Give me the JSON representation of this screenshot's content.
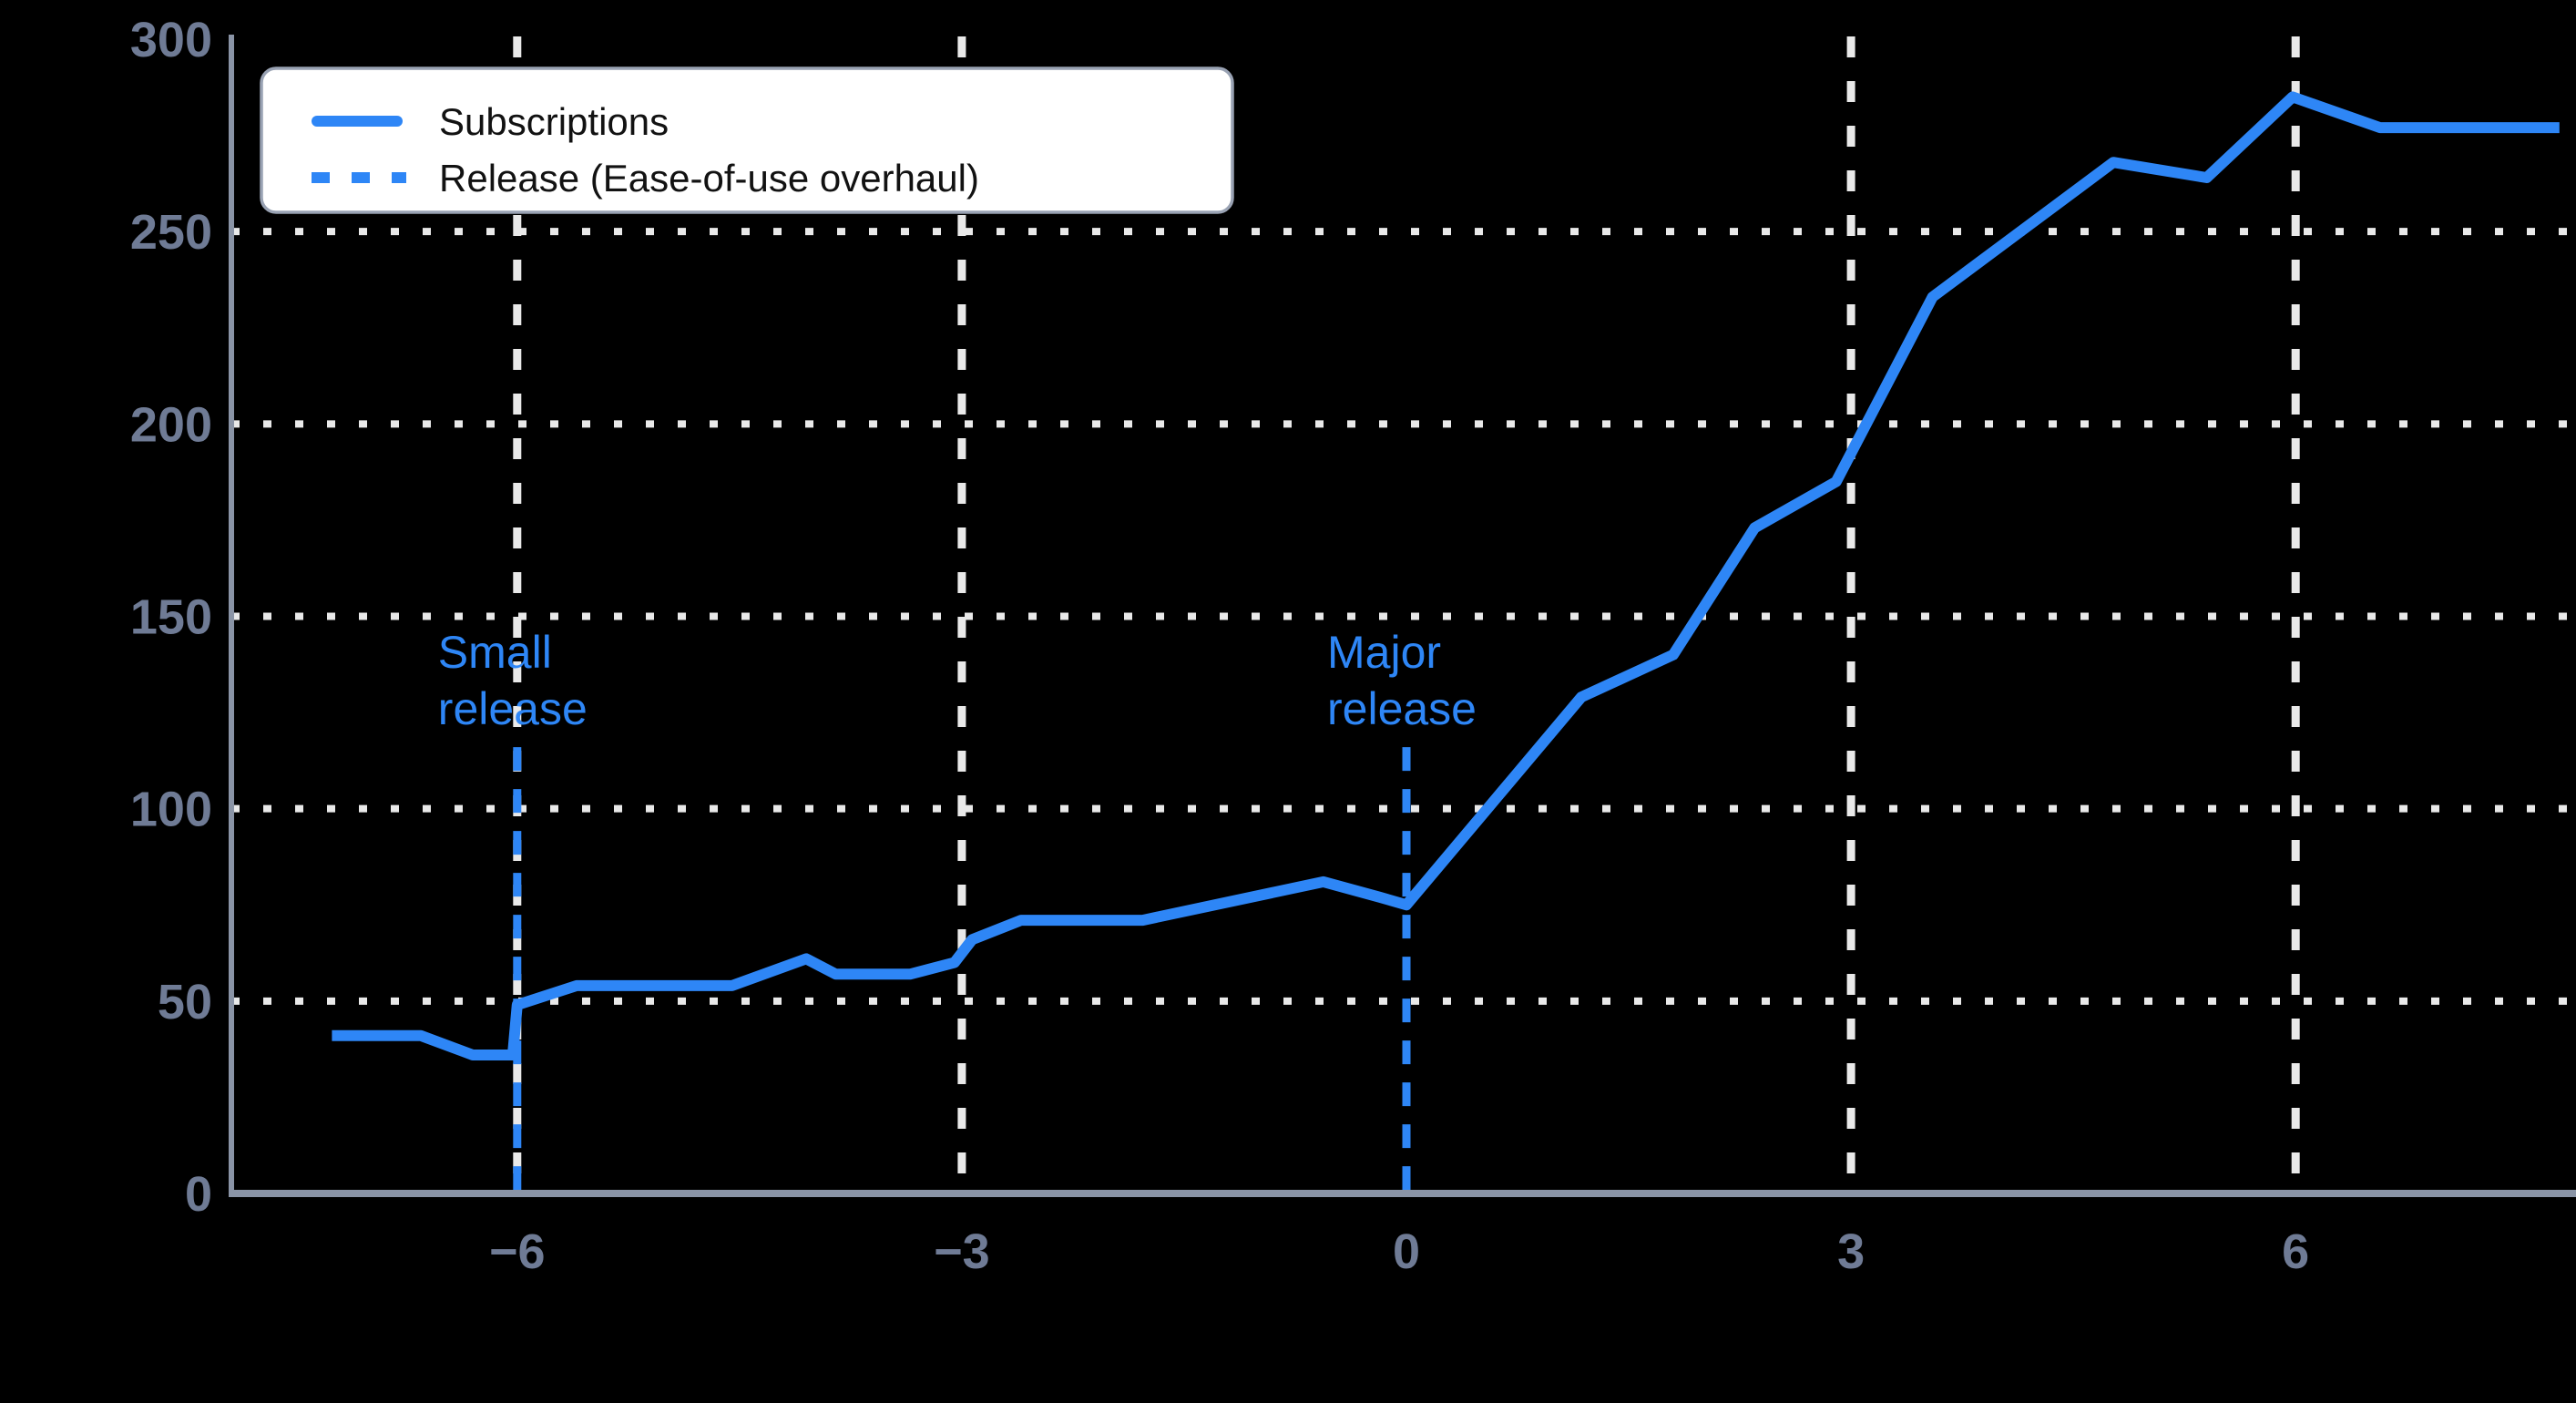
{
  "figure": {
    "background_color": "#000000"
  },
  "colors": {
    "series_line": "#2E86F6",
    "release_line": "#2E86F6",
    "annotation_text": "#2E86F6",
    "gridline": "#E9E9E9",
    "axis_line": "#8A94A6",
    "tick_label": "#6F7B95",
    "legend_background": "#FFFFFF",
    "legend_border": "#99A2B3",
    "legend_text": "#121212"
  },
  "legend": {
    "entries": [
      {
        "swatch": "solid-line",
        "label": "Subscriptions"
      },
      {
        "swatch": "dashed-line",
        "label": "Release (Ease-of-use overhaul)"
      }
    ]
  },
  "annotations": [
    {
      "x": -6,
      "lines": [
        "Small",
        "release"
      ]
    },
    {
      "x": 0,
      "lines": [
        "Major",
        "release"
      ]
    }
  ],
  "chart_data": {
    "type": "line",
    "title": "",
    "xlabel": "",
    "ylabel": "",
    "xlim": [
      -7.93,
      7.89
    ],
    "ylim": [
      0,
      300
    ],
    "x_ticks": [
      -6,
      -3,
      0,
      3,
      6
    ],
    "y_ticks": [
      0,
      50,
      100,
      150,
      200,
      250,
      300
    ],
    "grid": true,
    "grid_y_values": [
      50,
      100,
      150,
      200,
      250
    ],
    "grid_x_values": [
      -6,
      -3,
      3,
      6
    ],
    "legend_position": "upper left",
    "series": [
      {
        "name": "Subscriptions",
        "points": [
          [
            -7.25,
            41
          ],
          [
            -6.65,
            41
          ],
          [
            -6.3,
            36
          ],
          [
            -6.03,
            36
          ],
          [
            -6.0,
            49
          ],
          [
            -5.6,
            54
          ],
          [
            -4.55,
            54
          ],
          [
            -4.05,
            61
          ],
          [
            -3.85,
            57
          ],
          [
            -3.35,
            57
          ],
          [
            -3.05,
            60
          ],
          [
            -2.93,
            66
          ],
          [
            -2.6,
            71
          ],
          [
            -1.78,
            71
          ],
          [
            -0.56,
            81
          ],
          [
            -0.18,
            77
          ],
          [
            0.0,
            75
          ],
          [
            1.18,
            129
          ],
          [
            1.8,
            140
          ],
          [
            2.35,
            173
          ],
          [
            2.9,
            185
          ],
          [
            3.55,
            233
          ],
          [
            4.77,
            268
          ],
          [
            5.4,
            264
          ],
          [
            5.98,
            285
          ],
          [
            6.57,
            277
          ],
          [
            7.78,
            277
          ]
        ]
      }
    ],
    "release_lines": [
      {
        "x": -6,
        "label": "Small release",
        "from_value": 0,
        "to_value": 116
      },
      {
        "x": 0,
        "label": "Major release",
        "from_value": 0,
        "to_value": 116
      }
    ]
  }
}
